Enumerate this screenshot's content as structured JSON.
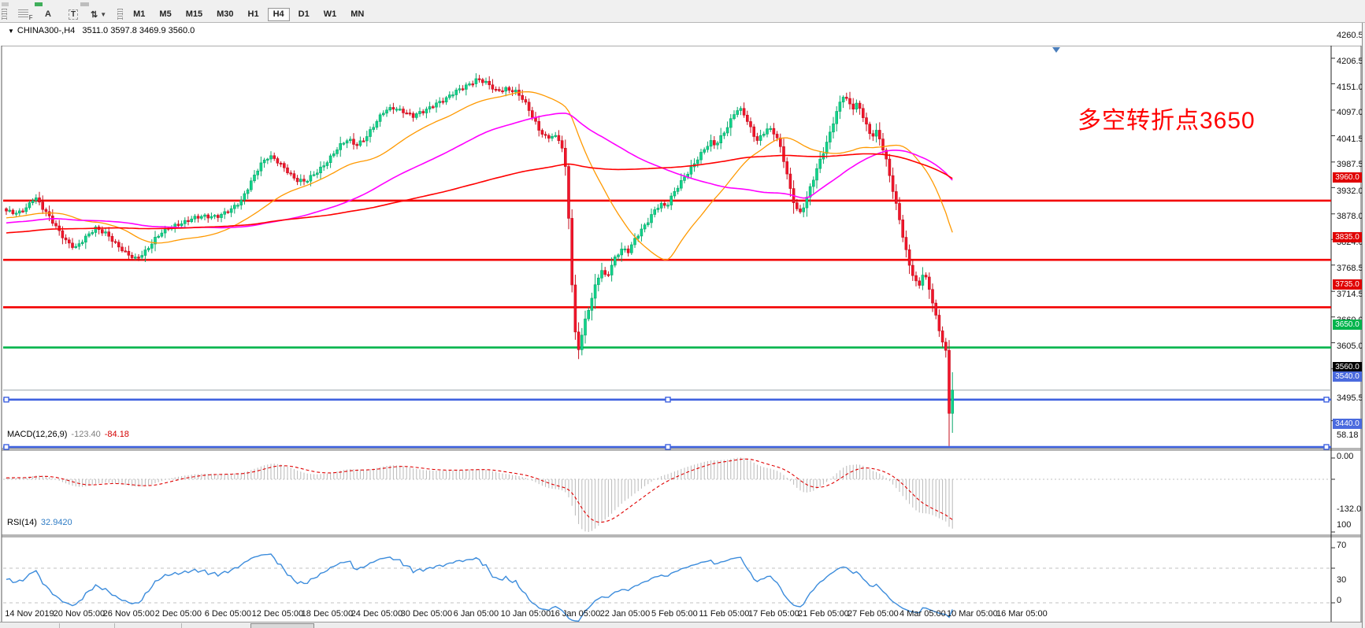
{
  "toolbar": {
    "tools": [
      {
        "name": "fibonacci-grid-tool",
        "glyph": "F"
      },
      {
        "name": "text-label-tool",
        "glyph": "A"
      },
      {
        "name": "text-box-tool",
        "glyph": "T"
      },
      {
        "name": "arrow-style-tool",
        "glyph": "⇅"
      }
    ],
    "timeframes": [
      {
        "label": "M1",
        "active": false
      },
      {
        "label": "M5",
        "active": false
      },
      {
        "label": "M15",
        "active": false
      },
      {
        "label": "M30",
        "active": false
      },
      {
        "label": "H1",
        "active": false
      },
      {
        "label": "H4",
        "active": true
      },
      {
        "label": "D1",
        "active": false
      },
      {
        "label": "W1",
        "active": false
      },
      {
        "label": "MN",
        "active": false
      }
    ]
  },
  "chart": {
    "symbol_title": "CHINA300-,H4",
    "ohlc_text": "3511.0 3597.8 3469.9 3560.0",
    "current_bar": {
      "open": 3511.0,
      "high": 3597.8,
      "low": 3469.9,
      "close": 3560.0
    },
    "annotation": {
      "text": "多空转折点3650",
      "color": "#ff0000"
    },
    "price_axis_labels": [
      4260.5,
      4206.5,
      4151.0,
      4097.0,
      4041.5,
      3987.5,
      3932.0,
      3878.0,
      3824.0,
      3768.5,
      3714.5,
      3660.0,
      3605.0,
      3495.5
    ],
    "hlines": [
      {
        "price": 3960.0,
        "color": "#f30000",
        "width": 2.6,
        "badge": "3960.0",
        "badge_bg": "#e00000",
        "handles": false
      },
      {
        "price": 3835.0,
        "color": "#f30000",
        "width": 2.6,
        "badge": "3835.0",
        "badge_bg": "#e00000",
        "handles": false
      },
      {
        "price": 3735.0,
        "color": "#f30000",
        "width": 2.6,
        "badge": "3735.0",
        "badge_bg": "#e00000",
        "handles": false
      },
      {
        "price": 3650.0,
        "color": "#00b44c",
        "width": 2.6,
        "badge": "3650.0",
        "badge_bg": "#00b44c",
        "handles": false
      },
      {
        "price": 3560.0,
        "color": "#9aa4a8",
        "width": 1,
        "badge": "3560.0",
        "badge_bg": "#000000",
        "handles": false
      },
      {
        "price": 3540.0,
        "color": "#3f62e0",
        "width": 2.6,
        "badge": "3540.0",
        "badge_bg": "#4a6ade",
        "handles": true
      },
      {
        "price": 3440.0,
        "color": "#3f62e0",
        "width": 2.6,
        "badge": "3440.0",
        "badge_bg": "#4a6ade",
        "handles": true
      }
    ],
    "date_labels": [
      "14 Nov 2019",
      "20 Nov 05:00",
      "26 Nov 05:00",
      "2 Dec 05:00",
      "6 Dec 05:00",
      "12 Dec 05:00",
      "18 Dec 05:00",
      "24 Dec 05:00",
      "30 Dec 05:00",
      "6 Jan 05:00",
      "10 Jan 05:00",
      "16 Jan 05:00",
      "22 Jan 05:00",
      "5 Feb 05:00",
      "11 Feb 05:00",
      "17 Feb 05:00",
      "21 Feb 05:00",
      "27 Feb 05:00",
      "4 Mar 05:00",
      "10 Mar 05:00",
      "16 Mar 05:00"
    ],
    "colors": {
      "up_fill": "#10d48b",
      "up_stroke": "#09a76a",
      "down_fill": "#f2152b",
      "down_stroke": "#c60f1e",
      "ma_fast": "#ff9900",
      "ma_mid": "#ff00ff",
      "ma_slow": "#ff0000",
      "rsi_line": "#3c8cdc",
      "macd_hist": "#b9b9b9",
      "macd_signal": "#e00000"
    },
    "chart_data": {
      "type": "candlestick",
      "note": "close-price anchor path [x_px, price] read from chart; candles/indicators derived",
      "price_path_anchors": [
        [
          8,
          3938
        ],
        [
          22,
          3930
        ],
        [
          34,
          3946
        ],
        [
          44,
          3972
        ],
        [
          56,
          3940
        ],
        [
          70,
          3905
        ],
        [
          84,
          3876
        ],
        [
          96,
          3862
        ],
        [
          110,
          3882
        ],
        [
          122,
          3902
        ],
        [
          136,
          3892
        ],
        [
          148,
          3866
        ],
        [
          160,
          3846
        ],
        [
          172,
          3838
        ],
        [
          184,
          3854
        ],
        [
          198,
          3880
        ],
        [
          212,
          3900
        ],
        [
          226,
          3912
        ],
        [
          242,
          3920
        ],
        [
          260,
          3926
        ],
        [
          278,
          3930
        ],
        [
          294,
          3940
        ],
        [
          306,
          3958
        ],
        [
          318,
          4000
        ],
        [
          330,
          4036
        ],
        [
          342,
          4052
        ],
        [
          354,
          4040
        ],
        [
          364,
          4026
        ],
        [
          376,
          4004
        ],
        [
          388,
          3998
        ],
        [
          402,
          4020
        ],
        [
          416,
          4046
        ],
        [
          430,
          4072
        ],
        [
          442,
          4088
        ],
        [
          452,
          4078
        ],
        [
          464,
          4094
        ],
        [
          476,
          4120
        ],
        [
          488,
          4148
        ],
        [
          500,
          4158
        ],
        [
          512,
          4150
        ],
        [
          524,
          4136
        ],
        [
          538,
          4148
        ],
        [
          552,
          4166
        ],
        [
          566,
          4174
        ],
        [
          580,
          4190
        ],
        [
          594,
          4206
        ],
        [
          606,
          4218
        ],
        [
          618,
          4206
        ],
        [
          630,
          4190
        ],
        [
          642,
          4198
        ],
        [
          654,
          4192
        ],
        [
          664,
          4172
        ],
        [
          674,
          4142
        ],
        [
          684,
          4112
        ],
        [
          694,
          4094
        ],
        [
          702,
          4098
        ],
        [
          710,
          4086
        ],
        [
          716,
          4058
        ],
        [
          720,
          3988
        ],
        [
          724,
          3860
        ],
        [
          728,
          3720
        ],
        [
          732,
          3655
        ],
        [
          736,
          3648
        ],
        [
          740,
          3692
        ],
        [
          746,
          3726
        ],
        [
          752,
          3756
        ],
        [
          758,
          3792
        ],
        [
          764,
          3810
        ],
        [
          770,
          3796
        ],
        [
          776,
          3822
        ],
        [
          782,
          3846
        ],
        [
          790,
          3860
        ],
        [
          798,
          3852
        ],
        [
          806,
          3876
        ],
        [
          814,
          3896
        ],
        [
          822,
          3916
        ],
        [
          830,
          3940
        ],
        [
          838,
          3954
        ],
        [
          846,
          3946
        ],
        [
          854,
          3970
        ],
        [
          862,
          3992
        ],
        [
          870,
          4014
        ],
        [
          878,
          4032
        ],
        [
          886,
          4050
        ],
        [
          894,
          4066
        ],
        [
          902,
          4082
        ],
        [
          908,
          4076
        ],
        [
          914,
          4092
        ],
        [
          920,
          4108
        ],
        [
          926,
          4126
        ],
        [
          932,
          4144
        ],
        [
          938,
          4154
        ],
        [
          944,
          4142
        ],
        [
          950,
          4122
        ],
        [
          956,
          4100
        ],
        [
          962,
          4088
        ],
        [
          968,
          4102
        ],
        [
          974,
          4114
        ],
        [
          980,
          4108
        ],
        [
          986,
          4094
        ],
        [
          992,
          4062
        ],
        [
          998,
          4024
        ],
        [
          1004,
          3978
        ],
        [
          1010,
          3948
        ],
        [
          1016,
          3936
        ],
        [
          1022,
          3956
        ],
        [
          1028,
          3984
        ],
        [
          1034,
          4010
        ],
        [
          1040,
          4038
        ],
        [
          1046,
          4064
        ],
        [
          1052,
          4094
        ],
        [
          1058,
          4128
        ],
        [
          1064,
          4158
        ],
        [
          1070,
          4184
        ],
        [
          1076,
          4170
        ],
        [
          1082,
          4152
        ],
        [
          1088,
          4162
        ],
        [
          1094,
          4146
        ],
        [
          1100,
          4120
        ],
        [
          1106,
          4096
        ],
        [
          1112,
          4110
        ],
        [
          1118,
          4086
        ],
        [
          1124,
          4052
        ],
        [
          1130,
          4006
        ],
        [
          1136,
          3962
        ],
        [
          1142,
          3920
        ],
        [
          1148,
          3872
        ],
        [
          1154,
          3830
        ],
        [
          1160,
          3800
        ],
        [
          1166,
          3776
        ],
        [
          1172,
          3806
        ],
        [
          1178,
          3784
        ],
        [
          1184,
          3744
        ],
        [
          1190,
          3702
        ],
        [
          1196,
          3668
        ],
        [
          1201,
          3642
        ],
        [
          1205,
          3600
        ],
        [
          1209,
          3560
        ]
      ],
      "y_axis_range": [
        3440.0,
        4260.5
      ],
      "x_range": [
        "14 Nov 2019",
        "16 Mar 2020"
      ]
    }
  },
  "macd": {
    "label": "MACD(12,26,9)",
    "value_main": "-123.40",
    "value_signal": "-84.18",
    "scale_labels": [
      [
        "58.18",
        553
      ],
      [
        "0.00",
        580
      ],
      [
        "-132.05",
        647
      ]
    ],
    "params": [
      12,
      26,
      9
    ]
  },
  "rsi": {
    "label": "RSI(14)",
    "value": "32.9420",
    "period": 14,
    "levels": [
      [
        "100",
        667
      ],
      [
        "70",
        693
      ],
      [
        "30",
        737
      ],
      [
        "0",
        763
      ]
    ]
  }
}
